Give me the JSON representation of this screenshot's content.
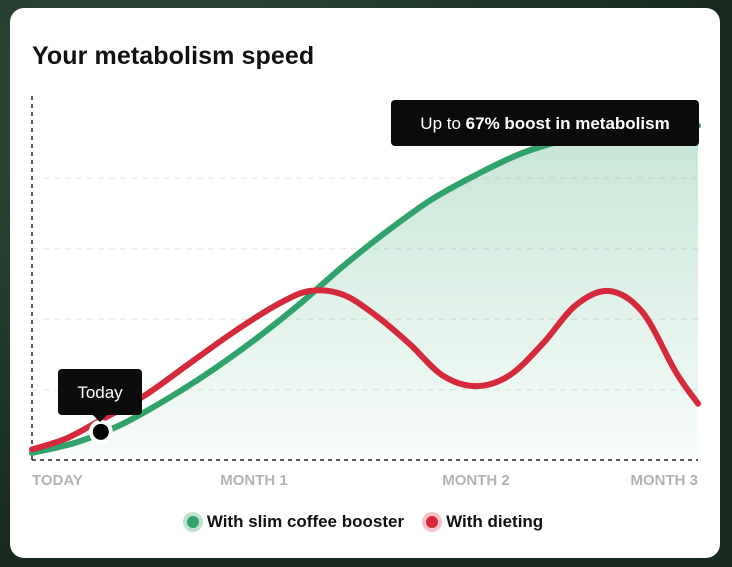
{
  "title": "Your metabolism speed",
  "colors": {
    "booster": "#2fa36b",
    "dieting": "#d42a3c",
    "booster_dot_ring": "#bfe3cd",
    "dieting_dot_ring": "#f3c3c8",
    "callout_bg": "#0b0b0b",
    "axis_label": "#b3b3b3"
  },
  "chart_data": {
    "type": "line",
    "title": "Your metabolism speed",
    "x_categories": [
      "TODAY",
      "MONTH 1",
      "MONTH 2",
      "MONTH 3"
    ],
    "xlim": [
      0,
      3
    ],
    "ylim": [
      0,
      100
    ],
    "grid": true,
    "legend_placement": "bottom-center",
    "series": [
      {
        "name": "With slim coffee booster",
        "key": "booster",
        "area_fill": true,
        "points": [
          [
            0.0,
            2
          ],
          [
            0.2,
            5
          ],
          [
            0.4,
            10
          ],
          [
            0.6,
            17
          ],
          [
            0.8,
            25
          ],
          [
            1.0,
            34
          ],
          [
            1.2,
            44
          ],
          [
            1.4,
            55
          ],
          [
            1.6,
            65
          ],
          [
            1.8,
            74
          ],
          [
            2.0,
            81
          ],
          [
            2.2,
            87
          ],
          [
            2.4,
            91
          ],
          [
            2.6,
            94
          ],
          [
            2.8,
            95
          ],
          [
            3.0,
            95
          ]
        ]
      },
      {
        "name": "With dieting",
        "key": "dieting",
        "area_fill": false,
        "points": [
          [
            0.0,
            3
          ],
          [
            0.15,
            6
          ],
          [
            0.3,
            11
          ],
          [
            0.5,
            18
          ],
          [
            0.7,
            27
          ],
          [
            0.9,
            36
          ],
          [
            1.1,
            44
          ],
          [
            1.25,
            48
          ],
          [
            1.4,
            47
          ],
          [
            1.55,
            41
          ],
          [
            1.7,
            33
          ],
          [
            1.85,
            24
          ],
          [
            2.0,
            21
          ],
          [
            2.15,
            24
          ],
          [
            2.3,
            33
          ],
          [
            2.45,
            44
          ],
          [
            2.6,
            48
          ],
          [
            2.75,
            42
          ],
          [
            2.9,
            25
          ],
          [
            3.0,
            16
          ]
        ]
      }
    ],
    "annotations": [
      {
        "label": "Today",
        "x": 0.31,
        "y": 8
      },
      {
        "label_prefix": "Up to ",
        "label_bold": "67% boost in metabolism",
        "x": 2.72,
        "y": 94
      }
    ]
  },
  "legend": {
    "booster": "With slim coffee booster",
    "dieting": "With dieting"
  }
}
